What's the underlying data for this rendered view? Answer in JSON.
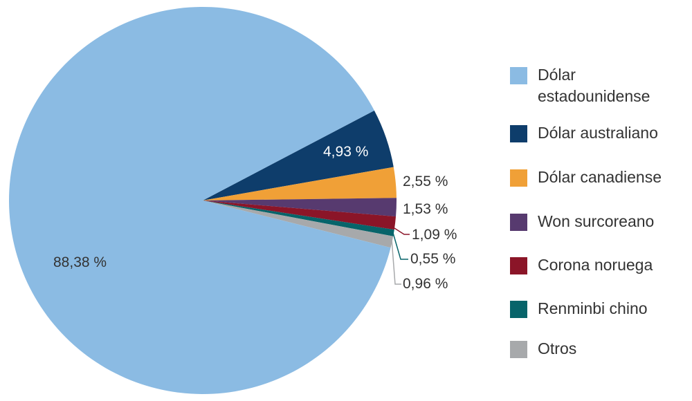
{
  "chart_data": {
    "type": "pie",
    "title": "",
    "categories": [
      "Dólar estadounidense",
      "Dólar australiano",
      "Dólar canadiense",
      "Won surcoreano",
      "Corona noruega",
      "Renminbi chino",
      "Otros"
    ],
    "values": [
      88.38,
      4.93,
      2.55,
      1.53,
      1.09,
      0.55,
      0.96
    ],
    "value_labels": [
      "88,38 %",
      "4,93 %",
      "2,55 %",
      "1,53 %",
      "1,09 %",
      "0,55 %",
      "0,96 %"
    ],
    "colors": [
      "#8bbbe3",
      "#0e3d6b",
      "#f0a037",
      "#573a6f",
      "#8b1528",
      "#07646a",
      "#a7a9ab"
    ],
    "legend_position": "right",
    "unit": "%"
  },
  "legend": {
    "items": [
      {
        "label": "Dólar estadounidense",
        "color": "#8bbbe3"
      },
      {
        "label": "Dólar australiano",
        "color": "#0e3d6b"
      },
      {
        "label": "Dólar canadiense",
        "color": "#f0a037"
      },
      {
        "label": "Won surcoreano",
        "color": "#573a6f"
      },
      {
        "label": "Corona noruega",
        "color": "#8b1528"
      },
      {
        "label": "Renminbi chino",
        "color": "#07646a"
      },
      {
        "label": "Otros",
        "color": "#a7a9ab"
      }
    ]
  }
}
